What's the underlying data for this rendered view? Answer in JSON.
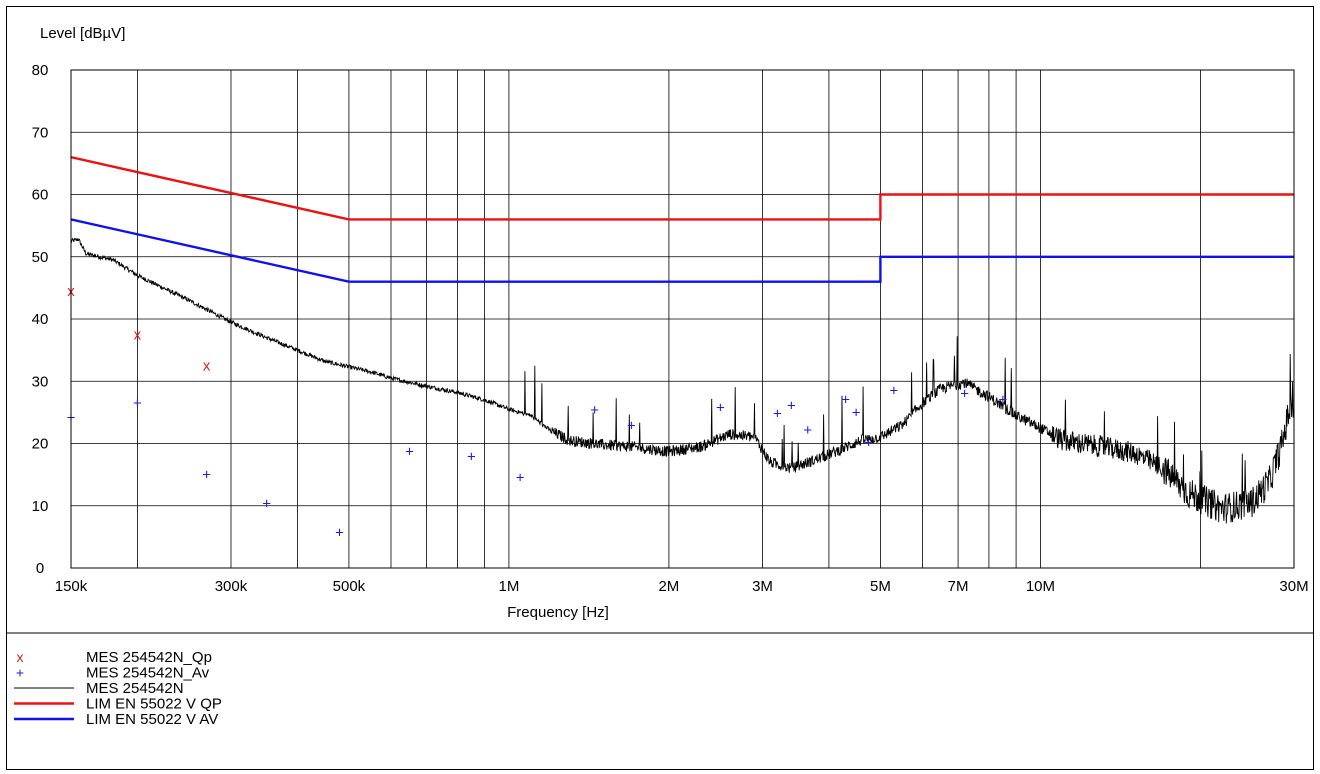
{
  "chart_data": {
    "type": "line",
    "ylabel": "Level [dBµV]",
    "xlabel": "Frequency [Hz]",
    "x_scale": "log",
    "xlim_hz": [
      150000,
      30000000
    ],
    "ylim": [
      0,
      80
    ],
    "y_ticks": [
      0,
      10,
      20,
      30,
      40,
      50,
      60,
      70,
      80
    ],
    "x_tick_labels": [
      {
        "hz": 150000,
        "label": "150k"
      },
      {
        "hz": 300000,
        "label": "300k"
      },
      {
        "hz": 500000,
        "label": "500k"
      },
      {
        "hz": 1000000,
        "label": "1M"
      },
      {
        "hz": 2000000,
        "label": "2M"
      },
      {
        "hz": 3000000,
        "label": "3M"
      },
      {
        "hz": 5000000,
        "label": "5M"
      },
      {
        "hz": 7000000,
        "label": "7M"
      },
      {
        "hz": 10000000,
        "label": "10M"
      },
      {
        "hz": 30000000,
        "label": "30M"
      }
    ],
    "grid_lines_hz": [
      200000,
      300000,
      400000,
      500000,
      600000,
      700000,
      800000,
      900000,
      1000000,
      2000000,
      3000000,
      4000000,
      5000000,
      6000000,
      7000000,
      8000000,
      9000000,
      10000000,
      20000000,
      30000000
    ],
    "grid": true,
    "series": [
      {
        "name": "MES  254542N_Qp",
        "marker": "x",
        "color": "#e02020",
        "points": [
          [
            150000,
            44.5
          ],
          [
            200000,
            37.5
          ],
          [
            270000,
            32.5
          ]
        ]
      },
      {
        "name": "MES  254542N_Av",
        "marker": "+",
        "color": "#1a1aee",
        "points": [
          [
            150000,
            24.2
          ],
          [
            200000,
            26.5
          ],
          [
            270000,
            15.0
          ],
          [
            350000,
            10.4
          ],
          [
            480000,
            5.7
          ],
          [
            650000,
            18.7
          ],
          [
            850000,
            17.9
          ],
          [
            1050000,
            14.5
          ],
          [
            1450000,
            25.4
          ],
          [
            1700000,
            22.9
          ],
          [
            2500000,
            25.8
          ],
          [
            3200000,
            24.8
          ],
          [
            3400000,
            26.1
          ],
          [
            3650000,
            22.2
          ],
          [
            4300000,
            27.1
          ],
          [
            4500000,
            25.0
          ],
          [
            4750000,
            20.2
          ],
          [
            5300000,
            28.5
          ],
          [
            7200000,
            28.0
          ],
          [
            8500000,
            27.1
          ]
        ]
      },
      {
        "name": "MES  254542N",
        "style": "trace",
        "color": "#000000",
        "envelope": [
          [
            150000,
            52.5
          ],
          [
            155000,
            52.8
          ],
          [
            160000,
            50.5
          ],
          [
            180000,
            49.5
          ],
          [
            200000,
            47.0
          ],
          [
            250000,
            43.0
          ],
          [
            300000,
            39.5
          ],
          [
            350000,
            37.0
          ],
          [
            400000,
            35.0
          ],
          [
            450000,
            33.2
          ],
          [
            500000,
            32.3
          ],
          [
            550000,
            31.5
          ],
          [
            600000,
            30.5
          ],
          [
            700000,
            29.2
          ],
          [
            800000,
            28.2
          ],
          [
            900000,
            27.0
          ],
          [
            1000000,
            25.5
          ],
          [
            1100000,
            24.5
          ],
          [
            1200000,
            22.0
          ],
          [
            1300000,
            20.5
          ],
          [
            1500000,
            19.8
          ],
          [
            1700000,
            19.5
          ],
          [
            2000000,
            18.7
          ],
          [
            2300000,
            19.5
          ],
          [
            2600000,
            21.5
          ],
          [
            2900000,
            21.0
          ],
          [
            3100000,
            17.0
          ],
          [
            3400000,
            16.0
          ],
          [
            3800000,
            17.5
          ],
          [
            4200000,
            19.0
          ],
          [
            4600000,
            20.5
          ],
          [
            5000000,
            21.0
          ],
          [
            5500000,
            23.0
          ],
          [
            6000000,
            26.5
          ],
          [
            6500000,
            28.8
          ],
          [
            7200000,
            29.8
          ],
          [
            8000000,
            27.5
          ],
          [
            9000000,
            24.5
          ],
          [
            10000000,
            22.5
          ],
          [
            11000000,
            20.5
          ],
          [
            13000000,
            19.5
          ],
          [
            15000000,
            18.5
          ],
          [
            17000000,
            16.0
          ],
          [
            19000000,
            12.0
          ],
          [
            22000000,
            9.5
          ],
          [
            25000000,
            10.5
          ],
          [
            27000000,
            14.0
          ],
          [
            28500000,
            20.0
          ],
          [
            29500000,
            26.0
          ],
          [
            30500000,
            25.0
          ],
          [
            31500000,
            17.0
          ],
          [
            33000000,
            13.0
          ],
          [
            35000000,
            12.5
          ]
        ]
      },
      {
        "name": "LIM  EN 55022 V QP",
        "style": "limit",
        "color": "#ee1111",
        "points": [
          [
            150000,
            66
          ],
          [
            500000,
            56
          ],
          [
            5000000,
            56
          ],
          [
            5000000,
            60
          ],
          [
            30000000,
            60
          ]
        ]
      },
      {
        "name": "LIM  EN 55022 V AV",
        "style": "limit",
        "color": "#1111ee",
        "points": [
          [
            150000,
            56
          ],
          [
            500000,
            46
          ],
          [
            5000000,
            46
          ],
          [
            5000000,
            50
          ],
          [
            30000000,
            50
          ]
        ]
      }
    ]
  }
}
